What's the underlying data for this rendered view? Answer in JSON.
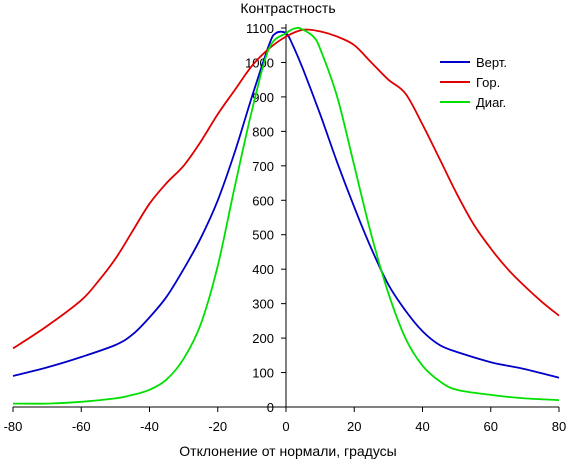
{
  "chart_data": {
    "type": "line",
    "title": "",
    "xlabel": "Отклонение от нормали, градусы",
    "ylabel": "Контрастность",
    "xlim": [
      -80,
      80
    ],
    "ylim": [
      0,
      1100
    ],
    "x_ticks": [
      -80,
      -60,
      -40,
      -20,
      0,
      20,
      40,
      60,
      80
    ],
    "y_ticks": [
      0,
      100,
      200,
      300,
      400,
      500,
      600,
      700,
      800,
      900,
      1000,
      1100
    ],
    "x_tick_labels": [
      "-80",
      "-60",
      "-40",
      "-20",
      "0",
      "20",
      "40",
      "60",
      "80"
    ],
    "y_tick_labels": [
      "0",
      "100",
      "200",
      "300",
      "400",
      "500",
      "600",
      "700",
      "800",
      "900",
      "1000",
      "1100"
    ],
    "grid": false,
    "legend_position": "top-right",
    "series": [
      {
        "name": "Верт.",
        "color": "#0000c8",
        "x": [
          -80,
          -70,
          -60,
          -50,
          -45,
          -40,
          -35,
          -30,
          -25,
          -20,
          -15,
          -10,
          -5,
          -3,
          0,
          2,
          5,
          10,
          15,
          20,
          25,
          30,
          35,
          40,
          45,
          50,
          60,
          70,
          80
        ],
        "y": [
          90,
          115,
          145,
          180,
          210,
          260,
          320,
          400,
          490,
          600,
          740,
          900,
          1050,
          1085,
          1085,
          1050,
          980,
          850,
          710,
          580,
          460,
          355,
          280,
          220,
          180,
          160,
          130,
          110,
          85
        ]
      },
      {
        "name": "Гор.",
        "color": "#e00000",
        "x": [
          -80,
          -70,
          -60,
          -55,
          -50,
          -45,
          -40,
          -35,
          -30,
          -25,
          -20,
          -15,
          -10,
          -5,
          0,
          5,
          10,
          15,
          20,
          25,
          30,
          35,
          40,
          45,
          50,
          55,
          60,
          65,
          70,
          75,
          80
        ],
        "y": [
          170,
          235,
          310,
          365,
          430,
          510,
          590,
          650,
          700,
          770,
          850,
          920,
          990,
          1040,
          1075,
          1095,
          1090,
          1075,
          1050,
          1000,
          950,
          910,
          820,
          720,
          620,
          530,
          460,
          400,
          350,
          305,
          265
        ]
      },
      {
        "name": "Диаг.",
        "color": "#00e000",
        "x": [
          -80,
          -70,
          -60,
          -50,
          -45,
          -40,
          -35,
          -30,
          -25,
          -20,
          -15,
          -10,
          -5,
          0,
          3,
          5,
          8,
          10,
          15,
          20,
          25,
          30,
          35,
          40,
          45,
          50,
          60,
          70,
          80
        ],
        "y": [
          10,
          10,
          15,
          25,
          35,
          50,
          80,
          140,
          240,
          410,
          640,
          860,
          1040,
          1085,
          1100,
          1095,
          1075,
          1040,
          900,
          700,
          500,
          330,
          200,
          120,
          75,
          50,
          35,
          25,
          20
        ]
      }
    ]
  }
}
